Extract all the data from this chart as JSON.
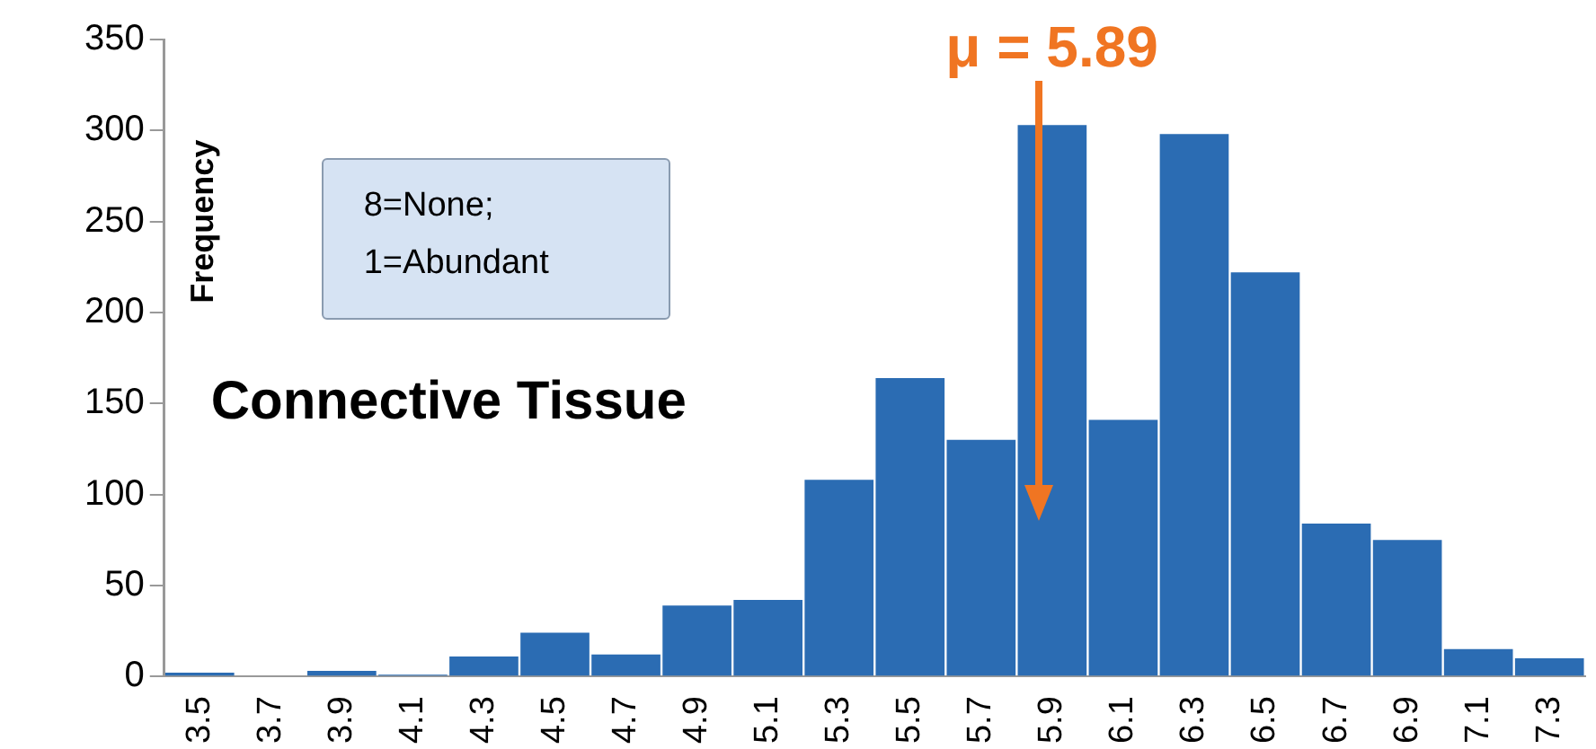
{
  "chart_data": {
    "type": "bar",
    "title": "Connective Tissue",
    "ylabel": "Frequency",
    "categories": [
      "3.5",
      "3.7",
      "3.9",
      "4.1",
      "4.3",
      "4.5",
      "4.7",
      "4.9",
      "5.1",
      "5.3",
      "5.5",
      "5.7",
      "5.9",
      "6.1",
      "6.3",
      "6.5",
      "6.7",
      "6.9",
      "7.1",
      "7.3"
    ],
    "values": [
      2,
      0,
      3,
      1,
      11,
      24,
      12,
      39,
      42,
      108,
      164,
      130,
      303,
      141,
      298,
      222,
      84,
      75,
      15,
      10
    ],
    "color": "#2b6cb3",
    "ylim": [
      0,
      350
    ],
    "yticks": [
      0,
      50,
      100,
      150,
      200,
      250,
      300,
      350
    ],
    "grid": false,
    "legend": false,
    "annotations": [
      "μ = 5.89",
      "8=None;\n1=Abundant"
    ]
  }
}
